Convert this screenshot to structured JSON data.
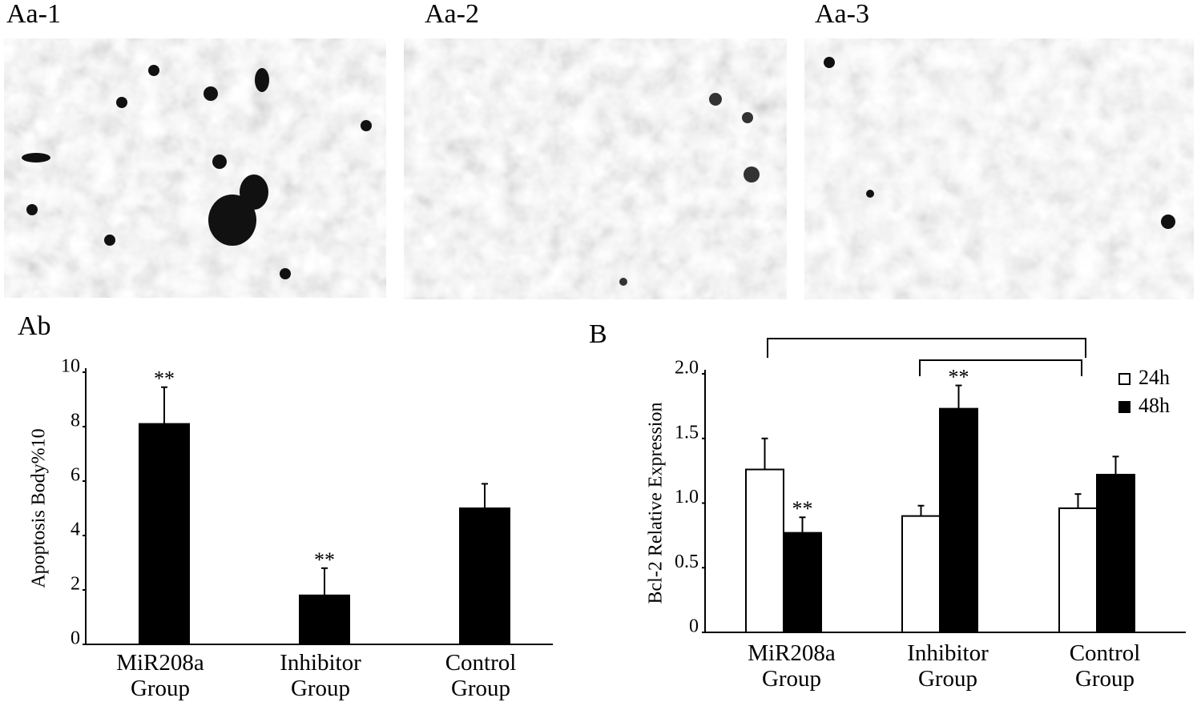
{
  "images": [
    "Aa-1",
    "Aa-2",
    "Aa-3"
  ],
  "chart_data": [
    {
      "type": "bar",
      "title": "Ab",
      "y_label": "Apoptosis Body%10",
      "categories": [
        "MiR208a Group",
        "Inhibitor Group",
        "Control Group"
      ],
      "ylim": [
        0,
        10
      ],
      "yticks": [
        0,
        2,
        4,
        6,
        8,
        10
      ],
      "series": [
        {
          "color": "#000000",
          "values": [
            8.1,
            1.8,
            5.0
          ],
          "errors": [
            1.35,
            1.0,
            0.9
          ],
          "annotations": [
            "**",
            "**",
            null
          ]
        }
      ]
    },
    {
      "type": "bar",
      "title": "B",
      "y_label": "Bcl-2 Relative Expression",
      "categories": [
        "MiR208a Group",
        "Inhibitor Group",
        "Control Group"
      ],
      "ylim": [
        0,
        2.0
      ],
      "yticks": [
        0,
        0.5,
        {
          "value": 1.0,
          "label": "1.0"
        },
        1.5,
        {
          "value": 2.0,
          "label": "2.0"
        }
      ],
      "legend": "top-right",
      "series": [
        {
          "name": "24h",
          "color": "#ffffff",
          "values": [
            1.26,
            0.9,
            0.96
          ],
          "errors": [
            0.24,
            0.08,
            0.11
          ],
          "annotations": [
            null,
            null,
            null
          ]
        },
        {
          "name": "48h",
          "color": "#000000",
          "values": [
            0.77,
            1.73,
            1.22
          ],
          "errors": [
            0.12,
            0.18,
            0.14
          ],
          "annotations": [
            "**",
            "**",
            null
          ]
        }
      ]
    }
  ]
}
